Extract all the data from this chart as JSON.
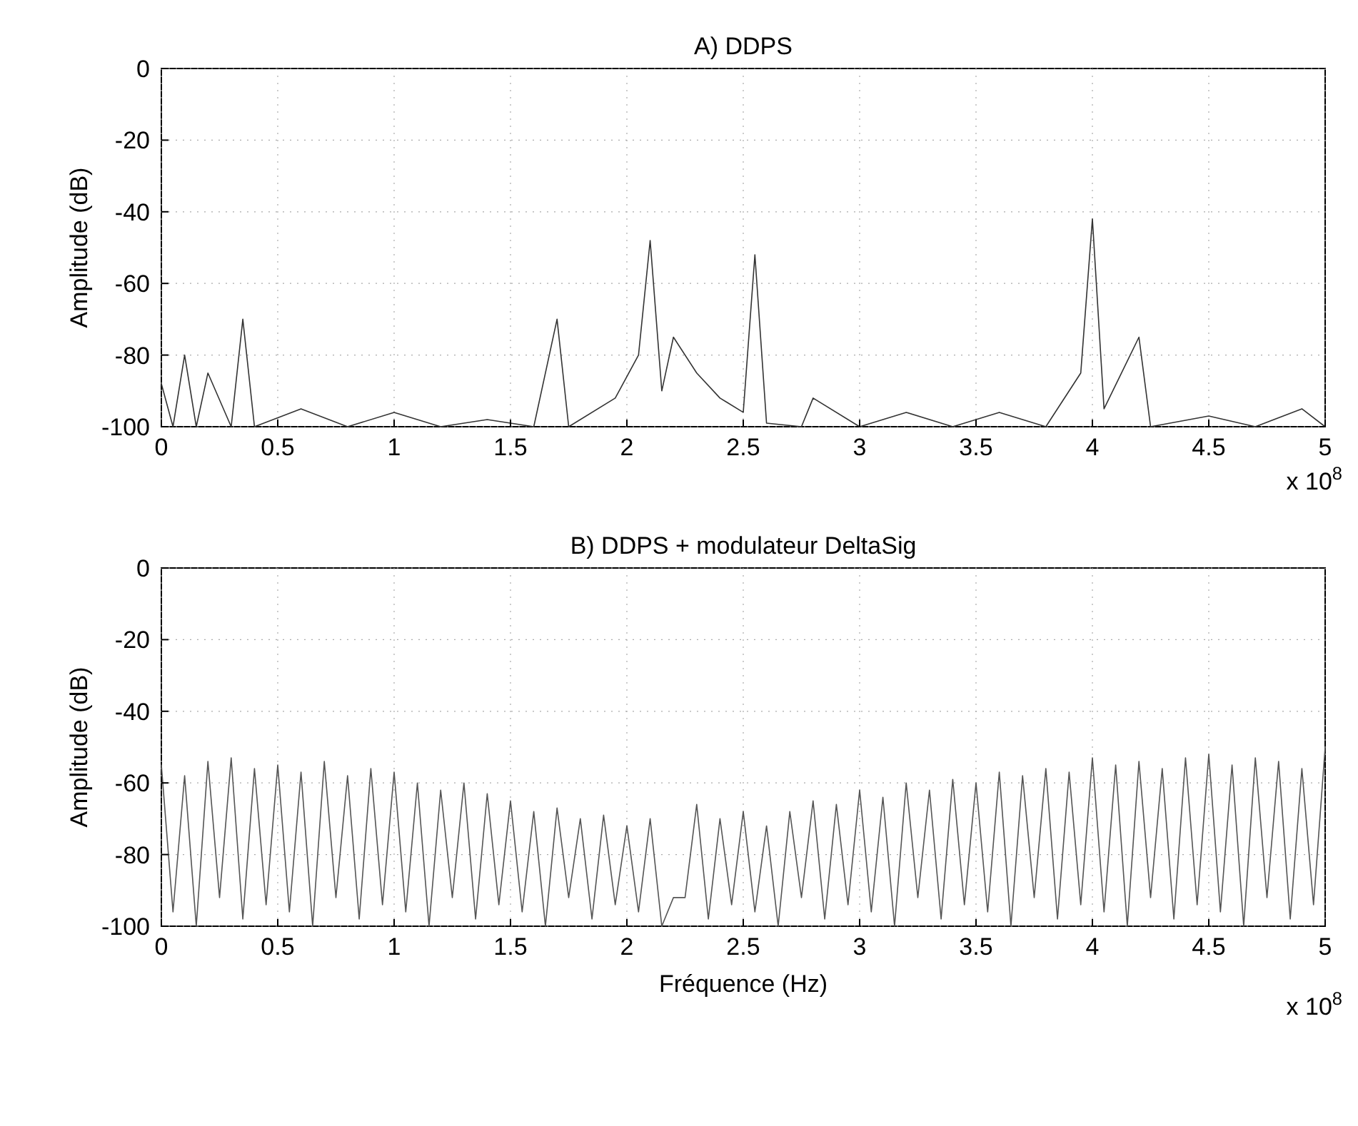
{
  "chart_data": [
    {
      "type": "line",
      "title": "A) DDPS",
      "ylabel": "Amplitude (dB)",
      "annotations": [
        "x 10$^{8}$"
      ],
      "series": [
        {
          "color": "#333333",
          "x": [
            0,
            0.05,
            0.1,
            0.15,
            0.2,
            0.3,
            0.35,
            0.4,
            0.6,
            0.8,
            1.0,
            1.2,
            1.4,
            1.6,
            1.7,
            1.75,
            1.95,
            2.05,
            2.1,
            2.15,
            2.2,
            2.3,
            2.4,
            2.5,
            2.55,
            2.6,
            2.75,
            2.8,
            3.0,
            3.2,
            3.4,
            3.6,
            3.8,
            3.95,
            4.0,
            4.05,
            4.2,
            4.25,
            4.5,
            4.7,
            4.9,
            5.0
          ],
          "values": [
            -88,
            -100,
            -80,
            -100,
            -85,
            -100,
            -70,
            -100,
            -95,
            -100,
            -96,
            -100,
            -98,
            -100,
            -70,
            -100,
            -92,
            -80,
            -48,
            -90,
            -75,
            -85,
            -92,
            -96,
            -52,
            -99,
            -100,
            -92,
            -100,
            -96,
            -100,
            -96,
            -100,
            -85,
            -42,
            -95,
            -75,
            -100,
            -97,
            -100,
            -95,
            -100
          ]
        }
      ],
      "xlim": [
        0,
        5
      ],
      "ylim": [
        -100,
        0
      ],
      "xticks": [
        0,
        0.5,
        1,
        1.5,
        2,
        2.5,
        3,
        3.5,
        4,
        4.5,
        5
      ],
      "yticks": [
        -100,
        -80,
        -60,
        -40,
        -20,
        0
      ],
      "grid": true
    },
    {
      "type": "line",
      "title": "B) DDPS + modulateur DeltaSig",
      "xlabel": "Fréquence (Hz)",
      "ylabel": "Amplitude (dB)",
      "annotations": [
        "x 10$^{8}$"
      ],
      "series": [
        {
          "color": "#555555",
          "x": [
            0,
            0.05,
            0.1,
            0.15,
            0.2,
            0.25,
            0.3,
            0.35,
            0.4,
            0.45,
            0.5,
            0.55,
            0.6,
            0.65,
            0.7,
            0.75,
            0.8,
            0.85,
            0.9,
            0.95,
            1.0,
            1.05,
            1.1,
            1.15,
            1.2,
            1.25,
            1.3,
            1.35,
            1.4,
            1.45,
            1.5,
            1.55,
            1.6,
            1.65,
            1.7,
            1.75,
            1.8,
            1.85,
            1.9,
            1.95,
            2.0,
            2.05,
            2.1,
            2.15,
            2.2,
            2.25,
            2.3,
            2.35,
            2.4,
            2.45,
            2.5,
            2.55,
            2.6,
            2.65,
            2.7,
            2.75,
            2.8,
            2.85,
            2.9,
            2.95,
            3.0,
            3.05,
            3.1,
            3.15,
            3.2,
            3.25,
            3.3,
            3.35,
            3.4,
            3.45,
            3.5,
            3.55,
            3.6,
            3.65,
            3.7,
            3.75,
            3.8,
            3.85,
            3.9,
            3.95,
            4.0,
            4.05,
            4.1,
            4.15,
            4.2,
            4.25,
            4.3,
            4.35,
            4.4,
            4.45,
            4.5,
            4.55,
            4.6,
            4.65,
            4.7,
            4.75,
            4.8,
            4.85,
            4.9,
            4.95,
            5.0
          ],
          "values": [
            -55,
            -96,
            -58,
            -100,
            -54,
            -92,
            -53,
            -98,
            -56,
            -94,
            -55,
            -96,
            -57,
            -100,
            -54,
            -92,
            -58,
            -98,
            -56,
            -94,
            -57,
            -96,
            -60,
            -100,
            -62,
            -92,
            -60,
            -98,
            -63,
            -94,
            -65,
            -96,
            -68,
            -100,
            -67,
            -92,
            -70,
            -98,
            -69,
            -94,
            -72,
            -96,
            -70,
            -100,
            -92,
            -92,
            -66,
            -98,
            -70,
            -94,
            -68,
            -96,
            -72,
            -100,
            -68,
            -92,
            -65,
            -98,
            -66,
            -94,
            -62,
            -96,
            -64,
            -100,
            -60,
            -92,
            -62,
            -98,
            -59,
            -94,
            -60,
            -96,
            -57,
            -100,
            -58,
            -92,
            -56,
            -98,
            -57,
            -94,
            -53,
            -96,
            -55,
            -100,
            -54,
            -92,
            -56,
            -98,
            -53,
            -94,
            -52,
            -96,
            -55,
            -100,
            -53,
            -92,
            -54,
            -98,
            -56,
            -94,
            -50
          ]
        }
      ],
      "xlim": [
        0,
        5
      ],
      "ylim": [
        -100,
        0
      ],
      "xticks": [
        0,
        0.5,
        1,
        1.5,
        2,
        2.5,
        3,
        3.5,
        4,
        4.5,
        5
      ],
      "yticks": [
        -100,
        -80,
        -60,
        -40,
        -20,
        0
      ],
      "grid": true
    }
  ]
}
